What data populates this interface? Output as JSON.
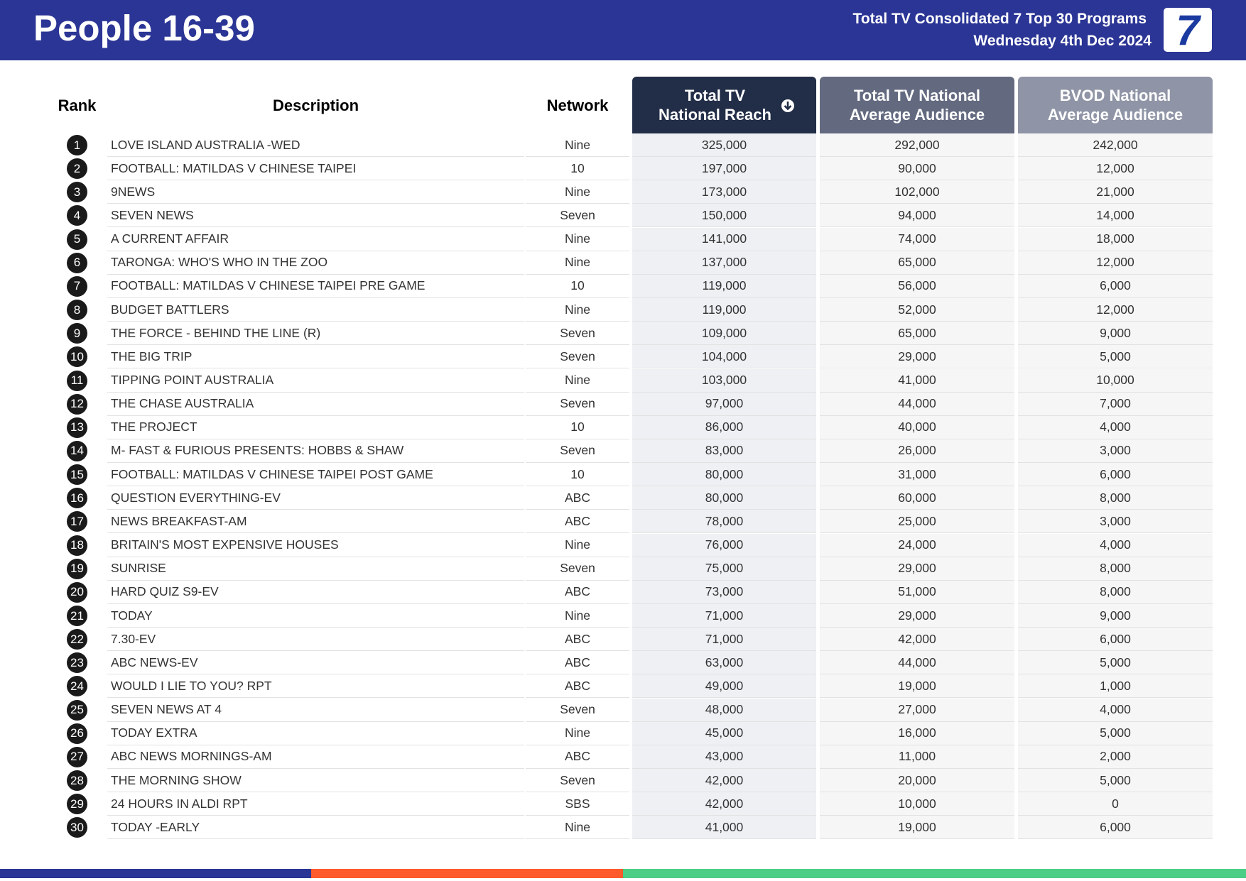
{
  "header": {
    "title": "People 16-39",
    "subtitle": "Total TV Consolidated 7 Top 30 Programs",
    "date": "Wednesday 4th Dec 2024",
    "logo": "7"
  },
  "table": {
    "columns": [
      "Rank",
      "Description",
      "Network",
      "Total TV National Reach",
      "Total TV National Average Audience",
      "BVOD National Average Audience"
    ],
    "rows": [
      [
        "1",
        "LOVE ISLAND AUSTRALIA -WED",
        "Nine",
        "325,000",
        "292,000",
        "242,000"
      ],
      [
        "2",
        "FOOTBALL: MATILDAS V CHINESE TAIPEI",
        "10",
        "197,000",
        "90,000",
        "12,000"
      ],
      [
        "3",
        "9NEWS",
        "Nine",
        "173,000",
        "102,000",
        "21,000"
      ],
      [
        "4",
        "SEVEN NEWS",
        "Seven",
        "150,000",
        "94,000",
        "14,000"
      ],
      [
        "5",
        "A CURRENT AFFAIR",
        "Nine",
        "141,000",
        "74,000",
        "18,000"
      ],
      [
        "6",
        "TARONGA: WHO'S WHO IN THE ZOO",
        "Nine",
        "137,000",
        "65,000",
        "12,000"
      ],
      [
        "7",
        "FOOTBALL: MATILDAS V CHINESE TAIPEI PRE GAME",
        "10",
        "119,000",
        "56,000",
        "6,000"
      ],
      [
        "8",
        "BUDGET BATTLERS",
        "Nine",
        "119,000",
        "52,000",
        "12,000"
      ],
      [
        "9",
        "THE FORCE - BEHIND THE LINE (R)",
        "Seven",
        "109,000",
        "65,000",
        "9,000"
      ],
      [
        "10",
        "THE BIG TRIP",
        "Seven",
        "104,000",
        "29,000",
        "5,000"
      ],
      [
        "11",
        "TIPPING POINT AUSTRALIA",
        "Nine",
        "103,000",
        "41,000",
        "10,000"
      ],
      [
        "12",
        "THE CHASE AUSTRALIA",
        "Seven",
        "97,000",
        "44,000",
        "7,000"
      ],
      [
        "13",
        "THE PROJECT",
        "10",
        "86,000",
        "40,000",
        "4,000"
      ],
      [
        "14",
        "M- FAST & FURIOUS PRESENTS: HOBBS & SHAW",
        "Seven",
        "83,000",
        "26,000",
        "3,000"
      ],
      [
        "15",
        "FOOTBALL: MATILDAS V CHINESE TAIPEI POST GAME",
        "10",
        "80,000",
        "31,000",
        "6,000"
      ],
      [
        "16",
        "QUESTION EVERYTHING-EV",
        "ABC",
        "80,000",
        "60,000",
        "8,000"
      ],
      [
        "17",
        "NEWS BREAKFAST-AM",
        "ABC",
        "78,000",
        "25,000",
        "3,000"
      ],
      [
        "18",
        "BRITAIN'S MOST EXPENSIVE HOUSES",
        "Nine",
        "76,000",
        "24,000",
        "4,000"
      ],
      [
        "19",
        "SUNRISE",
        "Seven",
        "75,000",
        "29,000",
        "8,000"
      ],
      [
        "20",
        "HARD QUIZ S9-EV",
        "ABC",
        "73,000",
        "51,000",
        "8,000"
      ],
      [
        "21",
        "TODAY",
        "Nine",
        "71,000",
        "29,000",
        "9,000"
      ],
      [
        "22",
        "7.30-EV",
        "ABC",
        "71,000",
        "42,000",
        "6,000"
      ],
      [
        "23",
        "ABC NEWS-EV",
        "ABC",
        "63,000",
        "44,000",
        "5,000"
      ],
      [
        "24",
        "WOULD I LIE TO YOU? RPT",
        "ABC",
        "49,000",
        "19,000",
        "1,000"
      ],
      [
        "25",
        "SEVEN NEWS AT 4",
        "Seven",
        "48,000",
        "27,000",
        "4,000"
      ],
      [
        "26",
        "TODAY EXTRA",
        "Nine",
        "45,000",
        "16,000",
        "5,000"
      ],
      [
        "27",
        "ABC NEWS MORNINGS-AM",
        "ABC",
        "43,000",
        "11,000",
        "2,000"
      ],
      [
        "28",
        "THE MORNING SHOW",
        "Seven",
        "42,000",
        "20,000",
        "5,000"
      ],
      [
        "29",
        "24 HOURS IN ALDI RPT",
        "SBS",
        "42,000",
        "10,000",
        "0"
      ],
      [
        "30",
        "TODAY -EARLY",
        "Nine",
        "41,000",
        "19,000",
        "6,000"
      ]
    ]
  }
}
